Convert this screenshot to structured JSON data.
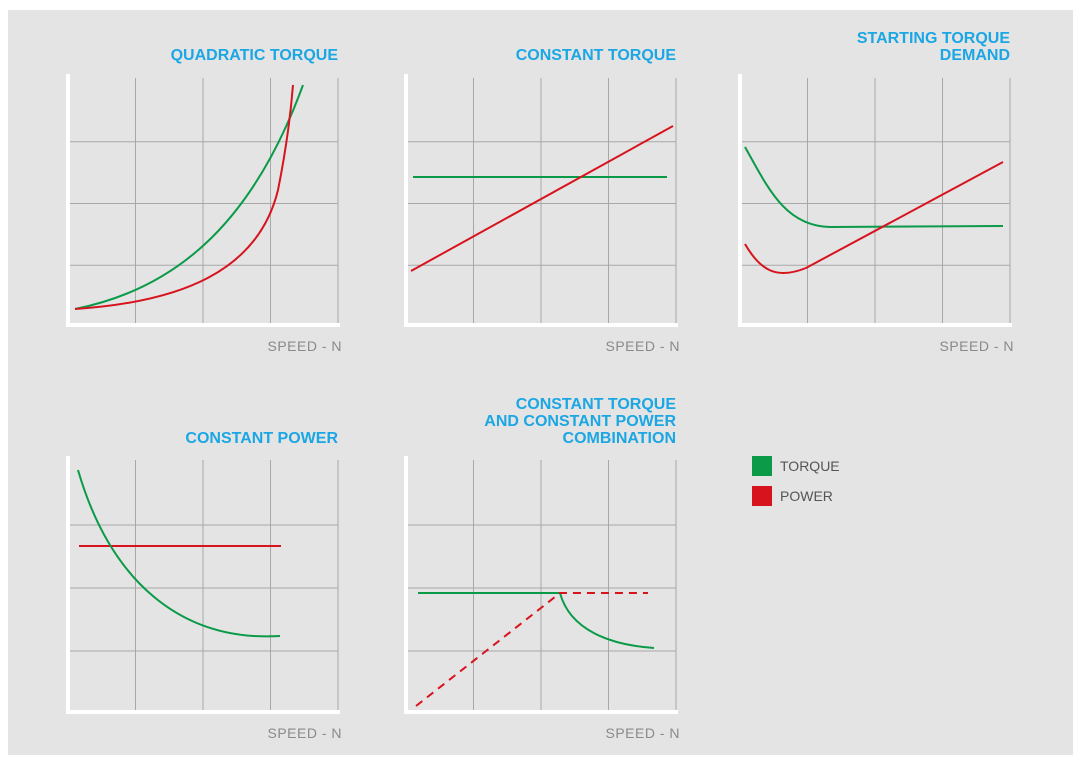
{
  "panels": [
    {
      "title_lines": [
        "QUADRATIC TORQUE"
      ],
      "x_label": "SPEED - N"
    },
    {
      "title_lines": [
        "CONSTANT TORQUE"
      ],
      "x_label": "SPEED - N"
    },
    {
      "title_lines": [
        "STARTING TORQUE",
        "DEMAND"
      ],
      "x_label": "SPEED - N"
    },
    {
      "title_lines": [
        "CONSTANT POWER"
      ],
      "x_label": "SPEED - N"
    },
    {
      "title_lines": [
        "CONSTANT TORQUE",
        "AND CONSTANT POWER",
        "COMBINATION"
      ],
      "x_label": "SPEED - N"
    }
  ],
  "legend": [
    {
      "label": "TORQUE",
      "color": "#0a9a48"
    },
    {
      "label": "POWER",
      "color": "#d7141e"
    }
  ]
}
